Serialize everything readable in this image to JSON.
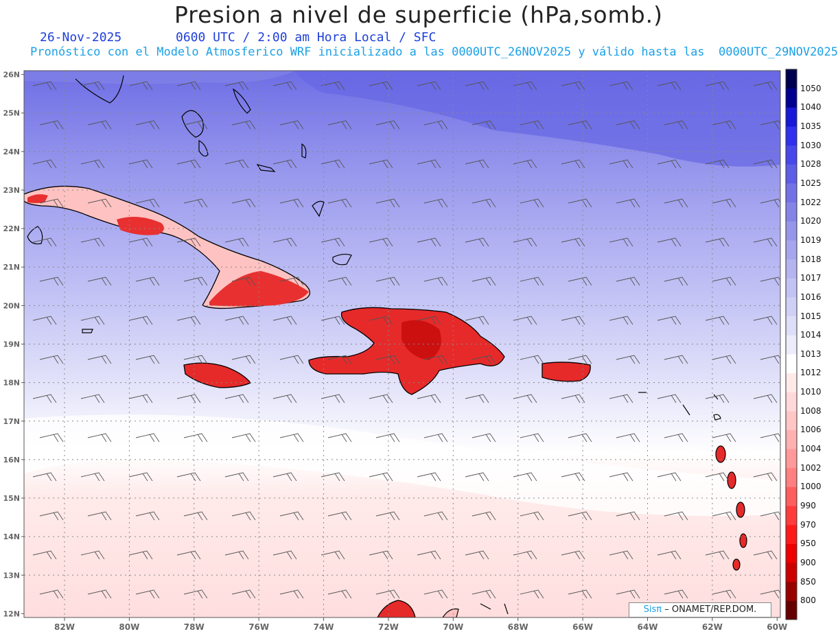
{
  "header": {
    "title": "Presion a nivel de superficie (hPa,somb.)",
    "date": "26-Nov-2025",
    "time_info": "0600 UTC / 2:00 am Hora Local / SFC",
    "model_info": "Pronóstico con el Modelo Atmosferico WRF inicializado a las 0000UTC_26NOV2025 y válido hasta las  0000UTC_29NOV2025"
  },
  "map": {
    "lon_labels": [
      "82W",
      "80W",
      "78W",
      "76W",
      "74W",
      "72W",
      "70W",
      "68W",
      "66W",
      "64W",
      "62W",
      "60W"
    ],
    "lat_labels": [
      "26N",
      "25N",
      "24N",
      "23N",
      "22N",
      "21N",
      "20N",
      "19N",
      "18N",
      "17N",
      "16N",
      "15N",
      "14N",
      "13N",
      "12N"
    ],
    "lon_values": [
      -82,
      -80,
      -78,
      -76,
      -74,
      -72,
      -70,
      -68,
      -66,
      -64,
      -62,
      -60
    ],
    "lat_values": [
      26,
      25,
      24,
      23,
      22,
      21,
      20,
      19,
      18,
      17,
      16,
      15,
      14,
      13,
      12
    ],
    "extent": {
      "lon_min": -83.25,
      "lon_max": -59.9,
      "lat_min": 11.9,
      "lat_max": 26.1
    }
  },
  "colorbar": {
    "levels": [
      "800",
      "850",
      "900",
      "950",
      "970",
      "990",
      "1000",
      "1002",
      "1004",
      "1006",
      "1008",
      "1010",
      "1012",
      "1013",
      "1014",
      "1015",
      "1016",
      "1017",
      "1018",
      "1019",
      "1020",
      "1022",
      "1025",
      "1028",
      "1030",
      "1035",
      "1040",
      "1050"
    ],
    "colors": [
      "#660000",
      "#990000",
      "#cc0000",
      "#ee0000",
      "#ff1a1a",
      "#ff3c3c",
      "#ff5e5e",
      "#ff8080",
      "#ff9999",
      "#ffb0b0",
      "#ffc6c6",
      "#ffd9d9",
      "#ffeaea",
      "#ffffff",
      "#ececfb",
      "#dedefa",
      "#d0d0f7",
      "#c2c2f4",
      "#b4b4f1",
      "#a6a6ee",
      "#9595ea",
      "#8484e6",
      "#7272e6",
      "#5d5de8",
      "#4747ea",
      "#3030ee",
      "#1818d8",
      "#000090",
      "#000050"
    ]
  },
  "credit": {
    "brand": "Sisπ",
    "text": "ONAMET/REP.DOM."
  }
}
